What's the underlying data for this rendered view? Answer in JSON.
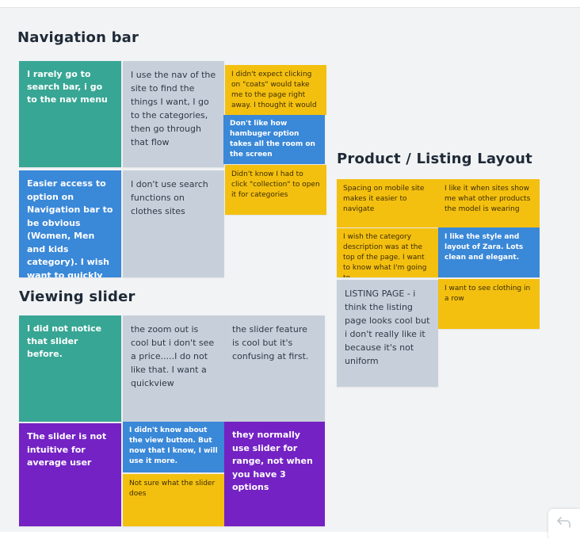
{
  "sections": {
    "navigation": {
      "title": "Navigation bar",
      "notes": [
        "I rarely go to search bar, i go to the nav menu",
        "I use the nav of the site to find the things I want, I go to the categories, then go through that flow",
        "I didn't expect clicking on \"coats\" would take me to the page right away. I thought it would ...",
        "Don't like how hambuger option takes all the room on the screen",
        "Easier access to option on Navigation bar to be obvious (Women, Men and kids category). I wish want to quickly ...",
        "I don't use search functions on clothes sites",
        "Didn't know I had to click \"collection\" to open it for categories"
      ]
    },
    "viewing_slider": {
      "title": "Viewing slider",
      "notes": [
        "I did not notice that slider before.",
        "the zoom out is cool but i don't see a price.....I do not like that. I want a quickview",
        "the slider feature is cool but it's confusing at first.",
        "The slider is not intuitive for average user",
        "I didn't know about the view button.  But now that I know, I will use it more.",
        "Not sure what the slider does",
        "they normally use slider for range, not when you have 3 options"
      ]
    },
    "product_listing": {
      "title": "Product / Listing Layout",
      "notes": [
        "Spacing on mobile site makes it easier to navigate",
        "I like it when sites show me what other products the model is wearing",
        "I wish the category description was at the top of the page. I want to know what I'm going to ...",
        "I like the style and layout of Zara. Lots clean and elegant.",
        "I want to see clothing in a row",
        "LISTING PAGE - i think the listing page looks cool but i don't really like it because it's not uniform"
      ]
    }
  },
  "colors": {
    "teal": "#38a694",
    "gray": "#c7d0da",
    "yellow": "#f4c010",
    "blue": "#3a88d8",
    "purple": "#7422c4",
    "board": "#f1f3f5"
  },
  "toolbar": {
    "undo_icon": "undo-arrow-icon"
  }
}
